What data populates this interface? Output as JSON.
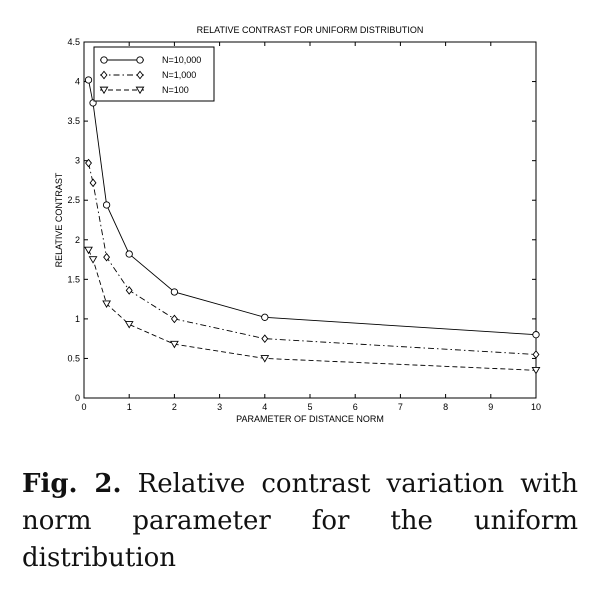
{
  "chart_data": {
    "type": "line",
    "title": "RELATIVE CONTRAST FOR UNIFORM DISTRIBUTION",
    "xlabel": "PARAMETER OF DISTANCE NORM",
    "ylabel": "RELATIVE CONTRAST",
    "xlim": [
      0,
      10
    ],
    "ylim": [
      0,
      4.5
    ],
    "xticks": [
      "0",
      "1",
      "2",
      "3",
      "4",
      "5",
      "6",
      "7",
      "8",
      "9",
      "10"
    ],
    "yticks": [
      "0",
      "0.5",
      "1",
      "1.5",
      "2",
      "2.5",
      "3",
      "3.5",
      "4",
      "4.5"
    ],
    "grid": false,
    "legend_position": "top-left",
    "series": [
      {
        "name": "N=10,000",
        "marker": "circle",
        "line": "solid",
        "x": [
          0.1,
          0.2,
          0.5,
          1,
          2,
          4,
          10
        ],
        "y": [
          4.02,
          3.73,
          2.44,
          1.82,
          1.34,
          1.02,
          0.8
        ]
      },
      {
        "name": "N=1,000",
        "marker": "diamond",
        "line": "dashdot",
        "x": [
          0.1,
          0.2,
          0.5,
          1,
          2,
          4,
          10
        ],
        "y": [
          2.97,
          2.72,
          1.78,
          1.36,
          1.0,
          0.75,
          0.55
        ]
      },
      {
        "name": "N=100",
        "marker": "triangle-down",
        "line": "dashed",
        "x": [
          0.1,
          0.2,
          0.5,
          1,
          2,
          4,
          10
        ],
        "y": [
          1.87,
          1.75,
          1.19,
          0.93,
          0.68,
          0.5,
          0.35
        ]
      }
    ]
  },
  "caption": {
    "label": "Fig. 2.",
    "text": "Relative contrast variation with norm parameter for the uniform distribution"
  }
}
